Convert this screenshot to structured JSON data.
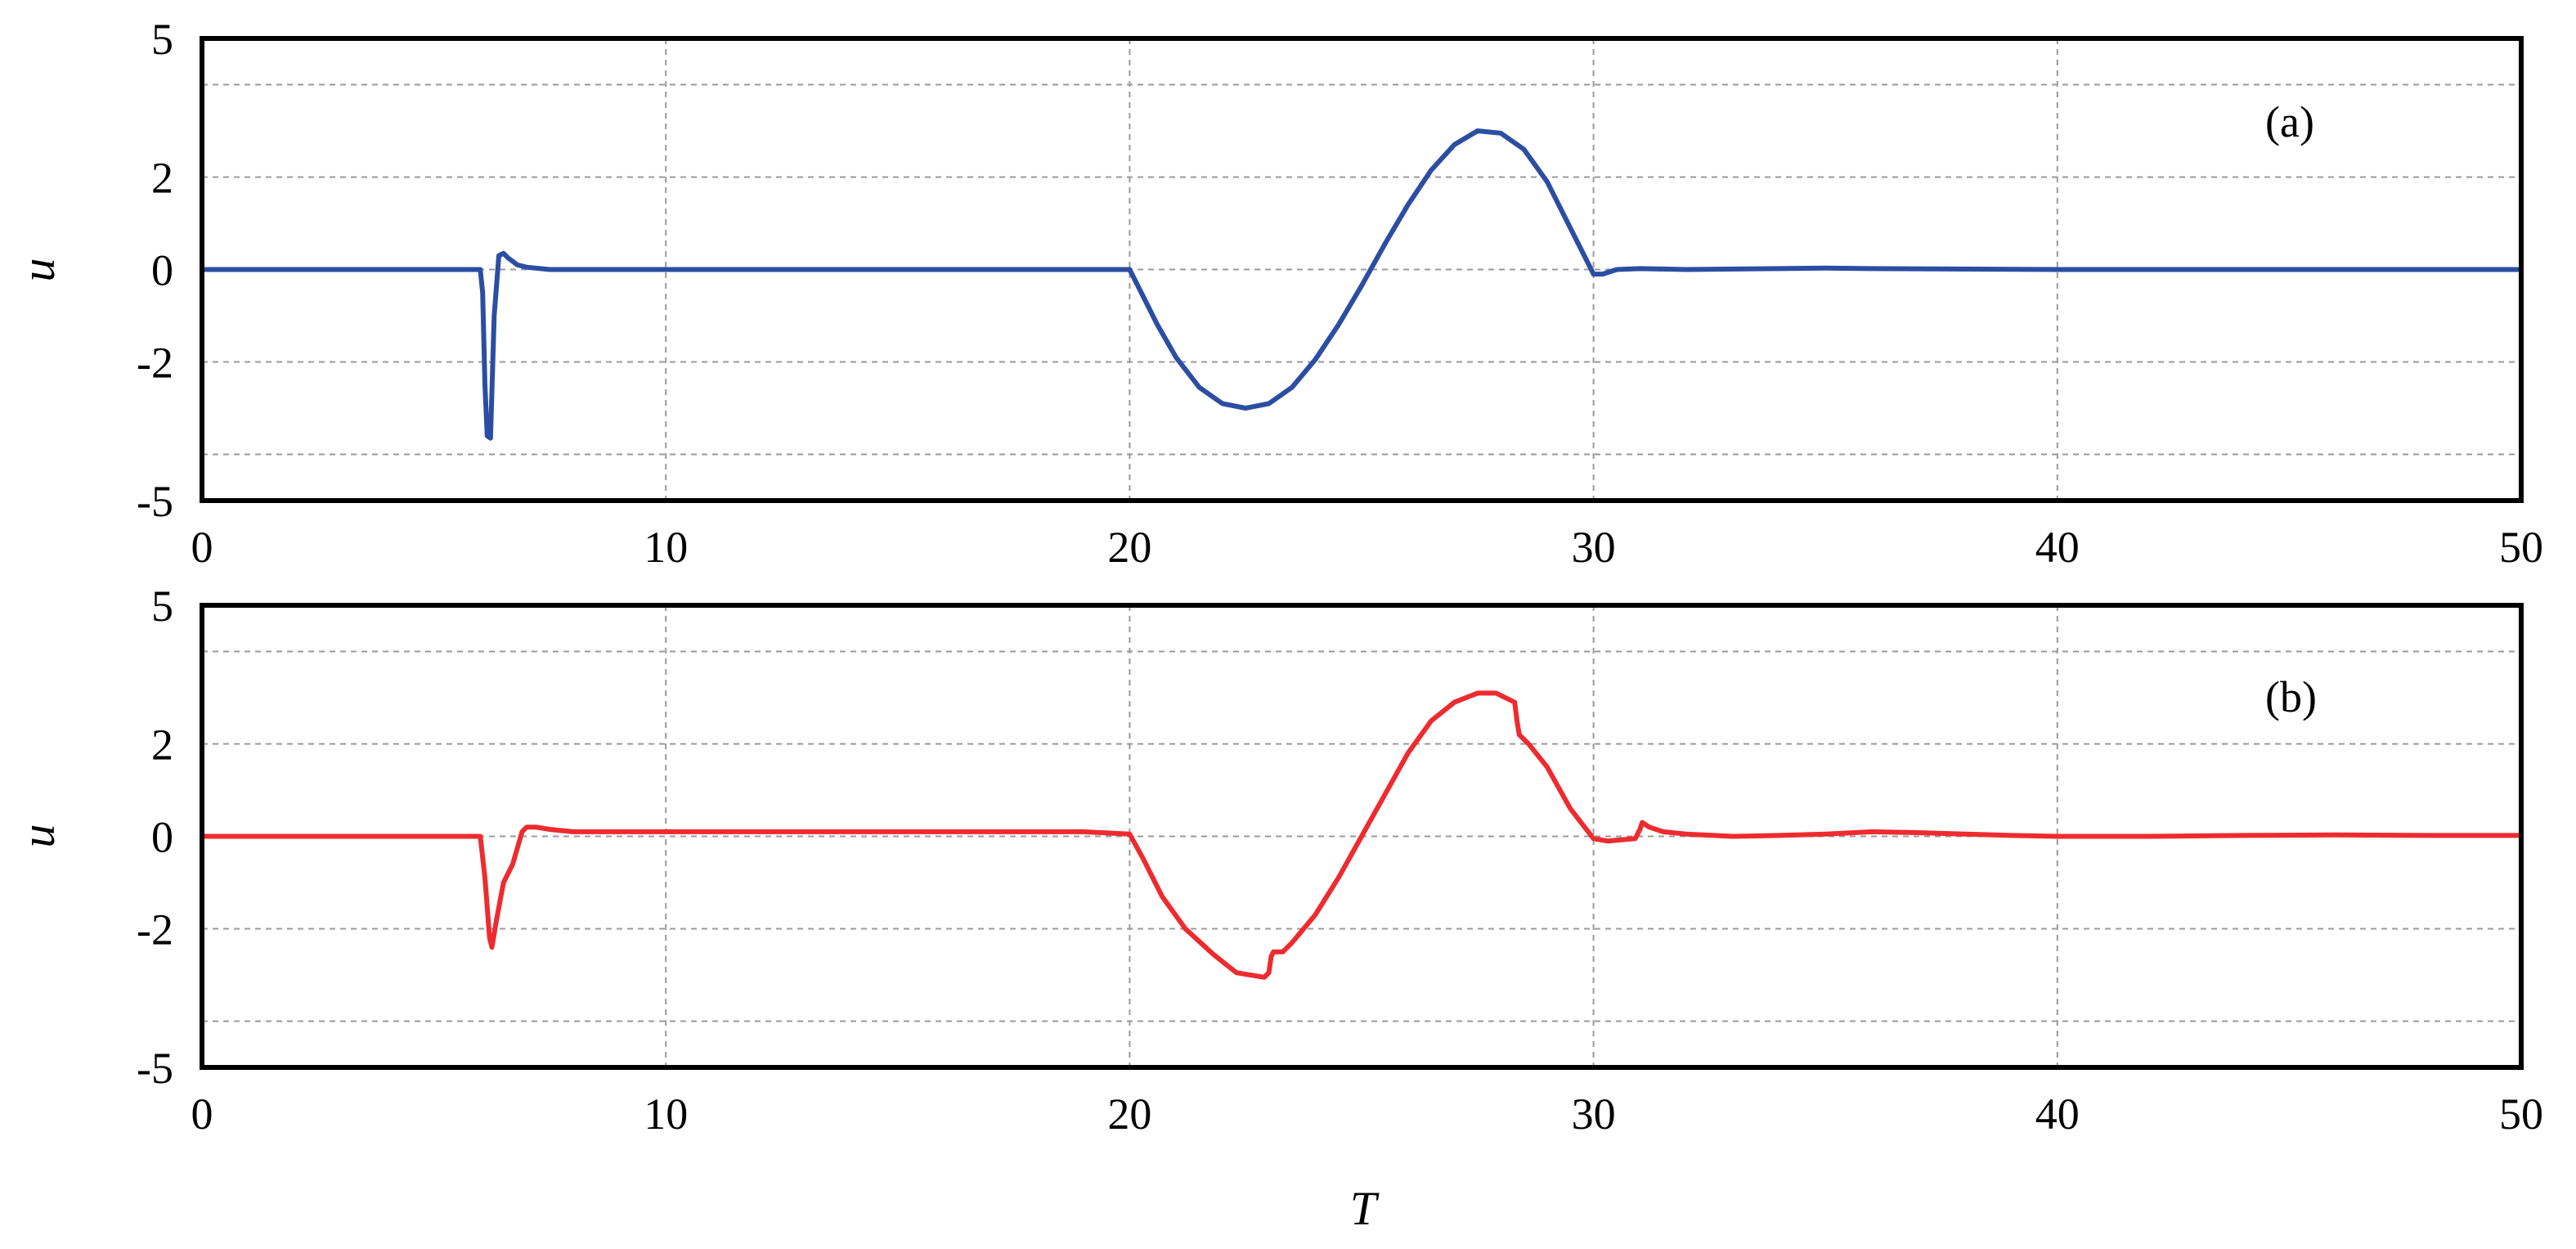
{
  "chart_data": [
    {
      "type": "line",
      "panel_label": "(a)",
      "xlabel": "",
      "ylabel": "u",
      "xlim": [
        0,
        50
      ],
      "ylim": [
        -5,
        5
      ],
      "x_ticks": [
        0,
        10,
        20,
        30,
        40,
        50
      ],
      "y_ticks": [
        -5,
        -2,
        0,
        2,
        5
      ],
      "y_gridlines": [
        -4,
        -2,
        0,
        2,
        4
      ],
      "grid": true,
      "line_color": "#2b4ea2",
      "series": [
        {
          "x": [
            0,
            6.0,
            6.05,
            6.1,
            6.15,
            6.22,
            6.3,
            6.4,
            6.5,
            6.6,
            6.8,
            7.0,
            7.5,
            8.0,
            20,
            20.3,
            20.6,
            21,
            21.5,
            22,
            22.5,
            23,
            23.5,
            24,
            24.5,
            25,
            25.5,
            26,
            26.5,
            27,
            27.5,
            28,
            28.5,
            29,
            29.5,
            30,
            30.2,
            30.5,
            31,
            32,
            34,
            35,
            36,
            40,
            50
          ],
          "y": [
            0,
            0,
            -0.5,
            -2.5,
            -3.6,
            -3.65,
            -1.0,
            0.3,
            0.35,
            0.25,
            0.1,
            0.05,
            0.0,
            0.0,
            0,
            -0.6,
            -1.2,
            -1.9,
            -2.55,
            -2.9,
            -3.0,
            -2.9,
            -2.55,
            -1.95,
            -1.2,
            -0.35,
            0.55,
            1.4,
            2.15,
            2.7,
            3.0,
            2.95,
            2.6,
            1.9,
            0.9,
            -0.1,
            -0.1,
            0.0,
            0.02,
            0.0,
            0.02,
            0.03,
            0.02,
            0.0,
            0.0
          ]
        }
      ]
    },
    {
      "type": "line",
      "panel_label": "(b)",
      "xlabel": "T",
      "ylabel": "u",
      "xlim": [
        0,
        50
      ],
      "ylim": [
        -5,
        5
      ],
      "x_ticks": [
        0,
        10,
        20,
        30,
        40,
        50
      ],
      "y_ticks": [
        -5,
        -2,
        0,
        2,
        5
      ],
      "y_gridlines": [
        -4,
        -2,
        0,
        2,
        4
      ],
      "grid": true,
      "line_color": "#ee2b2f",
      "series": [
        {
          "x": [
            0,
            6.0,
            6.1,
            6.2,
            6.25,
            6.35,
            6.5,
            6.7,
            6.9,
            7.0,
            7.2,
            7.5,
            8.0,
            9,
            10,
            11,
            12,
            13,
            14,
            15,
            16,
            17,
            18,
            19,
            20,
            20.3,
            20.7,
            21.2,
            21.8,
            22.3,
            22.9,
            23.0,
            23.05,
            23.1,
            23.2,
            23.3,
            23.5,
            24,
            24.5,
            25,
            25.5,
            26,
            26.5,
            27,
            27.5,
            27.9,
            28.3,
            28.35,
            28.4,
            28.6,
            29,
            29.5,
            30,
            30.3,
            30.9,
            31.0,
            31.05,
            31.2,
            31.5,
            32,
            33,
            34,
            35,
            36,
            37,
            38,
            39,
            40,
            42,
            44,
            46,
            48,
            50
          ],
          "y": [
            0,
            0,
            -0.9,
            -2.2,
            -2.4,
            -1.8,
            -1.0,
            -0.6,
            0.1,
            0.2,
            0.2,
            0.15,
            0.1,
            0.1,
            0.1,
            0.1,
            0.1,
            0.1,
            0.1,
            0.1,
            0.1,
            0.1,
            0.1,
            0.1,
            0.05,
            -0.5,
            -1.3,
            -2.0,
            -2.55,
            -2.95,
            -3.05,
            -2.95,
            -2.6,
            -2.5,
            -2.5,
            -2.5,
            -2.3,
            -1.7,
            -0.9,
            0.0,
            0.9,
            1.8,
            2.5,
            2.9,
            3.1,
            3.1,
            2.9,
            2.5,
            2.2,
            2.0,
            1.5,
            0.6,
            -0.05,
            -0.1,
            -0.05,
            0.15,
            0.3,
            0.2,
            0.1,
            0.05,
            0.0,
            0.02,
            0.05,
            0.1,
            0.08,
            0.05,
            0.02,
            0.0,
            0.0,
            0.02,
            0.03,
            0.02,
            0.02
          ]
        }
      ]
    }
  ]
}
